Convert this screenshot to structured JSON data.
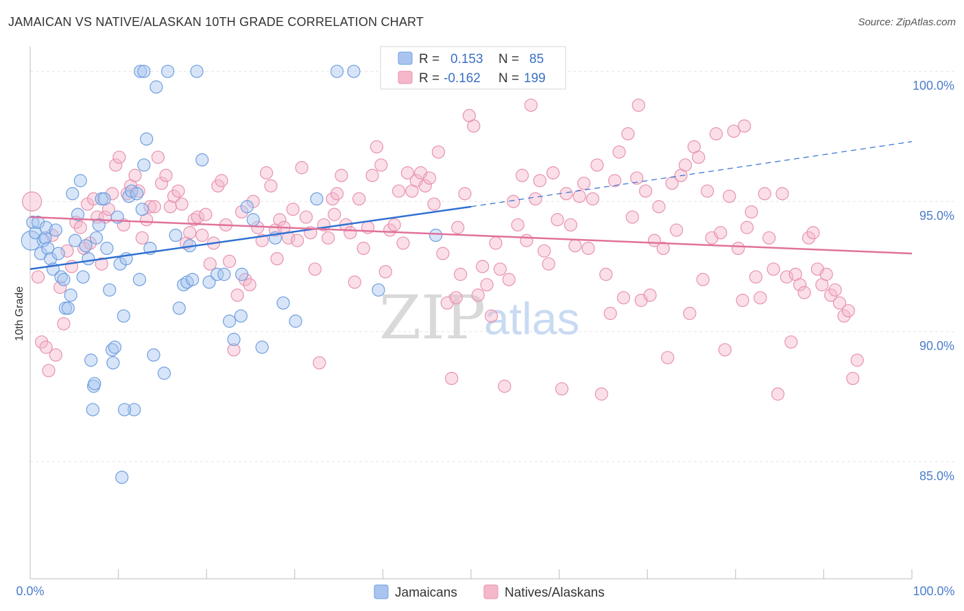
{
  "header": {
    "title": "JAMAICAN VS NATIVE/ALASKAN 10TH GRADE CORRELATION CHART",
    "source": "Source: ZipAtlas.com"
  },
  "watermark": {
    "zip": "ZIP",
    "atlas": "atlas"
  },
  "legend_box": {
    "rows": [
      {
        "r_label": "R =",
        "r_value": "0.153",
        "n_label": "N =",
        "n_value": "85",
        "color": "#a9c5ef"
      },
      {
        "r_label": "R =",
        "r_value": "-0.162",
        "n_label": "N =",
        "n_value": "199",
        "color": "#f5b8cb"
      }
    ]
  },
  "bottom_legend": [
    {
      "label": "Jamaicans",
      "color": "#a9c5ef"
    },
    {
      "label": "Natives/Alaskans",
      "color": "#f5b8cb"
    }
  ],
  "colors": {
    "blue_fill": "#a9c5ef",
    "blue_stroke": "#6d9ee0",
    "blue_line": "#2f6fd1",
    "pink_fill": "#f5b8cb",
    "pink_stroke": "#e891ad",
    "pink_line": "#e0719a",
    "grid": "#e3e3e3",
    "tick_text": "#4a7cc9"
  },
  "chart_data": {
    "type": "scatter",
    "title": "JAMAICAN VS NATIVE/ALASKAN 10TH GRADE CORRELATION CHART",
    "xlabel": "",
    "ylabel": "10th Grade",
    "xlim": [
      0,
      100
    ],
    "ylim": [
      80.5,
      100.9
    ],
    "x_tick_labels": [
      "0.0%",
      "100.0%"
    ],
    "y_ticks": [
      {
        "value": 85,
        "label": "85.0%"
      },
      {
        "value": 90,
        "label": "90.0%"
      },
      {
        "value": 95,
        "label": "95.0%"
      },
      {
        "value": 100,
        "label": "100.0%"
      }
    ],
    "grid": true,
    "legend_position": "top-center",
    "series": [
      {
        "name": "Jamaicans",
        "r": 0.153,
        "n": 85,
        "trend": {
          "x0": 0,
          "y0": 92.4,
          "x1": 50,
          "y1": 94.8,
          "dashed_to_x": 100,
          "dashed_to_y": 97.3
        },
        "points": [
          [
            0.1,
            93.5
          ],
          [
            0.3,
            94.2
          ],
          [
            0.6,
            93.8
          ],
          [
            0.9,
            94.2
          ],
          [
            1.2,
            93.0
          ],
          [
            1.5,
            93.5
          ],
          [
            1.7,
            93.6
          ],
          [
            1.8,
            94.0
          ],
          [
            2.0,
            93.2
          ],
          [
            2.3,
            92.8
          ],
          [
            2.6,
            92.4
          ],
          [
            2.9,
            93.9
          ],
          [
            3.2,
            93.0
          ],
          [
            3.5,
            92.1
          ],
          [
            3.8,
            92.0
          ],
          [
            4.0,
            90.9
          ],
          [
            4.3,
            90.9
          ],
          [
            4.6,
            91.4
          ],
          [
            4.8,
            95.3
          ],
          [
            5.1,
            93.5
          ],
          [
            5.4,
            94.5
          ],
          [
            5.7,
            95.8
          ],
          [
            6.0,
            92.1
          ],
          [
            6.3,
            93.3
          ],
          [
            6.6,
            92.8
          ],
          [
            6.9,
            88.9
          ],
          [
            7.2,
            87.9
          ],
          [
            7.5,
            93.6
          ],
          [
            7.8,
            94.1
          ],
          [
            8.1,
            95.1
          ],
          [
            8.4,
            95.1
          ],
          [
            8.7,
            93.2
          ],
          [
            9.0,
            91.6
          ],
          [
            9.3,
            89.3
          ],
          [
            9.6,
            89.4
          ],
          [
            9.9,
            94.4
          ],
          [
            10.2,
            92.6
          ],
          [
            10.6,
            90.6
          ],
          [
            10.9,
            92.8
          ],
          [
            11.2,
            95.2
          ],
          [
            11.5,
            95.4
          ],
          [
            11.8,
            87.0
          ],
          [
            12.1,
            95.3
          ],
          [
            12.4,
            92.0
          ],
          [
            12.7,
            94.7
          ],
          [
            12.9,
            96.4
          ],
          [
            13.2,
            97.4
          ],
          [
            13.6,
            93.2
          ],
          [
            14.0,
            89.1
          ],
          [
            14.3,
            99.4
          ],
          [
            15.2,
            88.4
          ],
          [
            16.5,
            93.7
          ],
          [
            16.9,
            90.9
          ],
          [
            17.4,
            91.8
          ],
          [
            17.8,
            91.9
          ],
          [
            18.1,
            93.3
          ],
          [
            18.4,
            92.0
          ],
          [
            18.9,
            100.0
          ],
          [
            19.5,
            96.6
          ],
          [
            20.3,
            91.9
          ],
          [
            21.2,
            92.2
          ],
          [
            22.0,
            92.2
          ],
          [
            22.6,
            90.4
          ],
          [
            23.1,
            89.7
          ],
          [
            23.9,
            90.6
          ],
          [
            24.6,
            94.8
          ],
          [
            25.3,
            94.3
          ],
          [
            26.3,
            89.4
          ],
          [
            27.8,
            93.6
          ],
          [
            28.7,
            91.1
          ],
          [
            30.1,
            90.4
          ],
          [
            32.5,
            95.1
          ],
          [
            34.8,
            100.0
          ],
          [
            36.7,
            100.0
          ],
          [
            39.5,
            91.6
          ],
          [
            46.0,
            93.7
          ],
          [
            12.5,
            100.0
          ],
          [
            15.6,
            100.0
          ],
          [
            12.9,
            100.0
          ],
          [
            9.4,
            88.8
          ],
          [
            7.1,
            87.0
          ],
          [
            10.7,
            87.0
          ],
          [
            10.4,
            84.4
          ],
          [
            24.0,
            92.2
          ],
          [
            7.3,
            88.0
          ]
        ]
      },
      {
        "name": "Natives/Alaskans",
        "r": -0.162,
        "n": 199,
        "trend": {
          "x0": 0,
          "y0": 94.4,
          "x1": 100,
          "y1": 93.0
        },
        "points": [
          [
            0.2,
            95.0
          ],
          [
            0.9,
            92.1
          ],
          [
            1.3,
            89.6
          ],
          [
            1.8,
            89.4
          ],
          [
            2.1,
            88.5
          ],
          [
            2.5,
            93.7
          ],
          [
            2.9,
            89.1
          ],
          [
            3.4,
            91.7
          ],
          [
            3.8,
            90.3
          ],
          [
            4.2,
            93.1
          ],
          [
            4.7,
            92.5
          ],
          [
            5.2,
            94.2
          ],
          [
            5.7,
            94.0
          ],
          [
            6.1,
            93.2
          ],
          [
            6.5,
            94.9
          ],
          [
            6.8,
            93.4
          ],
          [
            7.2,
            95.1
          ],
          [
            7.6,
            94.4
          ],
          [
            8.1,
            92.6
          ],
          [
            8.5,
            94.4
          ],
          [
            8.9,
            94.7
          ],
          [
            9.3,
            95.3
          ],
          [
            9.7,
            96.4
          ],
          [
            10.1,
            96.7
          ],
          [
            10.6,
            94.1
          ],
          [
            11.0,
            95.3
          ],
          [
            11.4,
            95.6
          ],
          [
            11.9,
            96.0
          ],
          [
            12.3,
            95.4
          ],
          [
            12.7,
            93.6
          ],
          [
            13.2,
            94.3
          ],
          [
            13.6,
            94.8
          ],
          [
            14.1,
            94.8
          ],
          [
            14.5,
            96.7
          ],
          [
            14.9,
            95.7
          ],
          [
            15.4,
            96.0
          ],
          [
            15.9,
            94.8
          ],
          [
            16.3,
            95.2
          ],
          [
            16.8,
            95.4
          ],
          [
            17.2,
            94.9
          ],
          [
            17.7,
            93.4
          ],
          [
            18.1,
            93.8
          ],
          [
            18.6,
            94.3
          ],
          [
            19.0,
            94.4
          ],
          [
            19.5,
            93.7
          ],
          [
            19.9,
            94.5
          ],
          [
            20.4,
            92.6
          ],
          [
            20.8,
            93.4
          ],
          [
            21.3,
            95.6
          ],
          [
            21.7,
            95.8
          ],
          [
            22.2,
            94.1
          ],
          [
            22.6,
            92.7
          ],
          [
            23.1,
            89.3
          ],
          [
            23.5,
            91.4
          ],
          [
            24.0,
            94.6
          ],
          [
            24.4,
            92.0
          ],
          [
            24.9,
            91.8
          ],
          [
            25.3,
            95.0
          ],
          [
            25.8,
            94.0
          ],
          [
            26.3,
            93.5
          ],
          [
            26.8,
            96.1
          ],
          [
            27.3,
            95.6
          ],
          [
            27.8,
            93.9
          ],
          [
            28.3,
            94.3
          ],
          [
            28.8,
            94.0
          ],
          [
            29.3,
            93.6
          ],
          [
            29.8,
            94.7
          ],
          [
            30.3,
            93.5
          ],
          [
            30.8,
            96.3
          ],
          [
            31.3,
            94.4
          ],
          [
            31.8,
            93.8
          ],
          [
            32.3,
            92.4
          ],
          [
            32.8,
            88.8
          ],
          [
            33.3,
            94.1
          ],
          [
            33.8,
            93.6
          ],
          [
            34.3,
            95.1
          ],
          [
            34.8,
            95.3
          ],
          [
            35.3,
            96.0
          ],
          [
            35.8,
            94.1
          ],
          [
            36.3,
            93.8
          ],
          [
            36.8,
            91.9
          ],
          [
            37.3,
            95.1
          ],
          [
            37.8,
            93.2
          ],
          [
            38.3,
            94.0
          ],
          [
            38.8,
            96.0
          ],
          [
            39.3,
            97.1
          ],
          [
            39.8,
            96.4
          ],
          [
            40.3,
            92.3
          ],
          [
            40.8,
            93.9
          ],
          [
            41.3,
            94.1
          ],
          [
            41.8,
            95.4
          ],
          [
            42.3,
            93.4
          ],
          [
            42.8,
            96.1
          ],
          [
            43.3,
            95.4
          ],
          [
            43.8,
            95.8
          ],
          [
            44.3,
            96.1
          ],
          [
            44.8,
            95.6
          ],
          [
            45.3,
            95.9
          ],
          [
            45.8,
            94.9
          ],
          [
            46.3,
            96.9
          ],
          [
            46.8,
            93.0
          ],
          [
            47.3,
            91.1
          ],
          [
            47.8,
            88.2
          ],
          [
            48.3,
            91.3
          ],
          [
            48.8,
            92.2
          ],
          [
            49.3,
            95.3
          ],
          [
            49.8,
            98.3
          ],
          [
            50.3,
            97.9
          ],
          [
            50.8,
            91.4
          ],
          [
            51.3,
            92.5
          ],
          [
            51.8,
            91.8
          ],
          [
            52.3,
            90.6
          ],
          [
            52.8,
            93.4
          ],
          [
            53.3,
            92.4
          ],
          [
            53.8,
            87.9
          ],
          [
            54.3,
            92.0
          ],
          [
            54.8,
            95.0
          ],
          [
            55.3,
            94.1
          ],
          [
            55.8,
            96.0
          ],
          [
            56.3,
            93.5
          ],
          [
            56.8,
            98.7
          ],
          [
            57.3,
            95.1
          ],
          [
            57.8,
            95.8
          ],
          [
            58.3,
            93.1
          ],
          [
            58.8,
            92.6
          ],
          [
            59.3,
            96.1
          ],
          [
            59.8,
            94.3
          ],
          [
            60.3,
            87.8
          ],
          [
            60.8,
            95.3
          ],
          [
            61.3,
            94.1
          ],
          [
            61.8,
            93.3
          ],
          [
            62.3,
            95.2
          ],
          [
            62.8,
            95.7
          ],
          [
            63.3,
            93.2
          ],
          [
            63.8,
            95.1
          ],
          [
            64.3,
            96.4
          ],
          [
            64.8,
            87.6
          ],
          [
            65.3,
            92.2
          ],
          [
            65.8,
            90.7
          ],
          [
            66.3,
            95.8
          ],
          [
            66.8,
            96.9
          ],
          [
            67.3,
            91.3
          ],
          [
            67.8,
            97.6
          ],
          [
            68.3,
            94.4
          ],
          [
            68.8,
            95.9
          ],
          [
            69.3,
            91.2
          ],
          [
            69.8,
            95.4
          ],
          [
            70.3,
            91.4
          ],
          [
            70.8,
            93.5
          ],
          [
            71.3,
            94.8
          ],
          [
            71.8,
            93.2
          ],
          [
            72.3,
            89.0
          ],
          [
            72.8,
            95.7
          ],
          [
            73.3,
            93.9
          ],
          [
            73.8,
            96.0
          ],
          [
            74.3,
            96.4
          ],
          [
            74.8,
            90.7
          ],
          [
            75.3,
            97.1
          ],
          [
            75.8,
            96.7
          ],
          [
            76.3,
            92.0
          ],
          [
            76.8,
            95.4
          ],
          [
            77.3,
            93.6
          ],
          [
            77.8,
            97.6
          ],
          [
            78.3,
            93.8
          ],
          [
            78.8,
            89.3
          ],
          [
            79.3,
            95.2
          ],
          [
            79.8,
            97.7
          ],
          [
            80.3,
            93.2
          ],
          [
            80.8,
            91.2
          ],
          [
            81.3,
            94.0
          ],
          [
            81.8,
            94.6
          ],
          [
            82.3,
            92.1
          ],
          [
            82.8,
            91.3
          ],
          [
            83.3,
            95.3
          ],
          [
            83.8,
            93.6
          ],
          [
            84.3,
            92.4
          ],
          [
            84.8,
            87.6
          ],
          [
            85.3,
            95.3
          ],
          [
            85.8,
            92.1
          ],
          [
            86.3,
            89.6
          ],
          [
            86.8,
            92.2
          ],
          [
            87.3,
            91.8
          ],
          [
            87.8,
            91.5
          ],
          [
            88.3,
            93.6
          ],
          [
            88.8,
            93.8
          ],
          [
            89.3,
            92.4
          ],
          [
            89.8,
            91.8
          ],
          [
            90.3,
            92.2
          ],
          [
            90.8,
            91.4
          ],
          [
            91.3,
            91.6
          ],
          [
            91.8,
            91.1
          ],
          [
            92.3,
            90.6
          ],
          [
            92.8,
            90.8
          ],
          [
            93.3,
            88.2
          ],
          [
            93.8,
            88.9
          ],
          [
            28.0,
            92.8
          ],
          [
            34.5,
            94.5
          ],
          [
            48.5,
            94.0
          ],
          [
            69.0,
            98.7
          ],
          [
            81.0,
            97.9
          ]
        ]
      }
    ]
  }
}
